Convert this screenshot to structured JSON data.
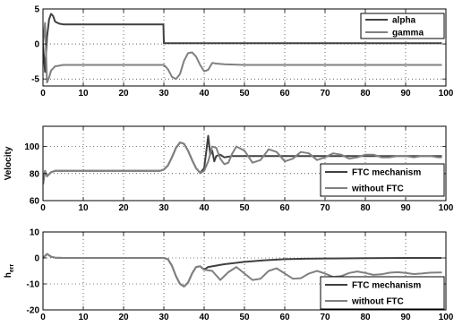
{
  "chart_data": [
    {
      "type": "line",
      "xlabel": "",
      "ylabel": "",
      "xlim": [
        0,
        100
      ],
      "ylim": [
        -6,
        5
      ],
      "xticks": [
        0,
        10,
        20,
        30,
        40,
        50,
        60,
        70,
        80,
        90,
        100
      ],
      "yticks": [
        -5,
        0,
        5
      ],
      "grid": true,
      "legend": "top-right",
      "series": [
        {
          "name": "alpha",
          "color": "#404040",
          "x": [
            0,
            0.5,
            1,
            1.5,
            2,
            2.5,
            3,
            4,
            5,
            7,
            10,
            20,
            29.9,
            30,
            35,
            40,
            50,
            60,
            70,
            80,
            90,
            99
          ],
          "y": [
            0,
            -4,
            1,
            3.5,
            4.3,
            4,
            3.2,
            2.9,
            2.8,
            2.8,
            2.8,
            2.8,
            2.8,
            0.1,
            0.1,
            0.1,
            0.1,
            0.1,
            0.1,
            0.1,
            0.1,
            0.1
          ]
        },
        {
          "name": "gamma",
          "color": "#808080",
          "x": [
            0,
            0.5,
            1,
            1.5,
            2,
            3,
            5,
            10,
            20,
            30,
            31,
            32,
            33,
            34,
            35,
            36,
            37,
            38,
            39,
            40,
            41,
            42,
            43,
            45,
            50,
            60,
            70,
            80,
            90,
            99
          ],
          "y": [
            0,
            3,
            -5.5,
            -4.8,
            -3.8,
            -3.2,
            -3.0,
            -3.0,
            -3.0,
            -3.0,
            -3.6,
            -4.7,
            -5.0,
            -4.3,
            -2.4,
            -1.3,
            -1.2,
            -1.8,
            -3.0,
            -3.9,
            -3.7,
            -2.7,
            -2.8,
            -2.9,
            -3.0,
            -3.0,
            -3.0,
            -3.0,
            -3.0,
            -3.0
          ]
        }
      ]
    },
    {
      "type": "line",
      "xlabel": "",
      "ylabel": "Velocity",
      "xlim": [
        0,
        100
      ],
      "ylim": [
        60,
        115
      ],
      "xticks": [
        0,
        10,
        20,
        30,
        40,
        50,
        60,
        70,
        80,
        90,
        100
      ],
      "yticks": [
        60,
        80,
        100
      ],
      "grid": true,
      "legend": "bottom-right",
      "series": [
        {
          "name": "FTC mechanism",
          "color": "#404040",
          "x": [
            0,
            0.5,
            1,
            2,
            3,
            5,
            10,
            20,
            29,
            30,
            31,
            32,
            33,
            34,
            35,
            36,
            37,
            38,
            39,
            40,
            40.5,
            41,
            41.5,
            42,
            42.5,
            43,
            44,
            45,
            47,
            50,
            60,
            70,
            80,
            90,
            99
          ],
          "y": [
            72,
            82,
            78,
            81,
            82,
            82,
            82,
            82,
            82,
            83,
            86,
            92,
            99,
            103,
            102,
            97,
            90,
            84,
            80.5,
            84,
            96,
            108,
            94,
            97,
            89,
            93,
            94,
            92,
            93,
            93,
            93,
            93,
            93,
            93,
            93
          ]
        },
        {
          "name": "without FTC",
          "color": "#808080",
          "x": [
            0,
            0.5,
            1,
            2,
            3,
            5,
            10,
            20,
            29,
            30,
            31,
            32,
            33,
            34,
            35,
            36,
            37,
            38,
            39,
            40,
            41,
            42,
            43,
            44,
            45,
            46,
            47,
            48,
            50,
            52,
            54,
            56,
            58,
            60,
            62,
            64,
            66,
            68,
            70,
            72,
            74,
            76,
            78,
            80,
            82,
            84,
            86,
            88,
            90,
            92,
            94,
            96,
            98,
            99
          ],
          "y": [
            72,
            82,
            78,
            81,
            82,
            82,
            82,
            82,
            82,
            83,
            86,
            92,
            99,
            103,
            102,
            97,
            90,
            84,
            80.5,
            82,
            89,
            100,
            99,
            91,
            87,
            88,
            95,
            100,
            97,
            88,
            90,
            98,
            96,
            89,
            91,
            96,
            95,
            90,
            92,
            95,
            94,
            91,
            92,
            94,
            94,
            92,
            92,
            93,
            93,
            92,
            93,
            93,
            92,
            92
          ]
        }
      ]
    },
    {
      "type": "line",
      "xlabel": "",
      "ylabel": "h_err",
      "xlim": [
        0,
        100
      ],
      "ylim": [
        -20,
        10
      ],
      "xticks": [
        0,
        10,
        20,
        30,
        40,
        50,
        60,
        70,
        80,
        90,
        100
      ],
      "yticks": [
        -20,
        -10,
        0,
        10
      ],
      "grid": true,
      "legend": "bottom-right",
      "series": [
        {
          "name": "FTC mechanism",
          "color": "#404040",
          "x": [
            0,
            1,
            2,
            3,
            5,
            10,
            20,
            30,
            31,
            32,
            33,
            34,
            35,
            36,
            37,
            38,
            39,
            40,
            41,
            45,
            50,
            55,
            60,
            65,
            70,
            80,
            90,
            99
          ],
          "y": [
            0,
            1.5,
            0.5,
            0.1,
            0,
            0,
            0,
            0,
            -0.5,
            -3,
            -7,
            -10,
            -11,
            -9.5,
            -6,
            -3.5,
            -3.2,
            -4.5,
            -3.5,
            -2.4,
            -1.5,
            -0.9,
            -0.5,
            -0.3,
            -0.2,
            -0.1,
            0,
            0
          ]
        },
        {
          "name": "without FTC",
          "color": "#808080",
          "x": [
            0,
            1,
            2,
            3,
            5,
            10,
            20,
            30,
            31,
            32,
            33,
            34,
            35,
            36,
            37,
            38,
            39,
            40,
            42,
            44,
            46,
            48,
            50,
            52,
            54,
            56,
            58,
            60,
            62,
            64,
            66,
            68,
            70,
            72,
            74,
            76,
            78,
            80,
            82,
            84,
            86,
            88,
            90,
            92,
            94,
            96,
            98,
            99
          ],
          "y": [
            0,
            1.5,
            0.5,
            0.1,
            0,
            0,
            0,
            0,
            -0.5,
            -3,
            -7,
            -10,
            -11,
            -9.5,
            -6,
            -3.5,
            -3.2,
            -4.5,
            -5,
            -8.5,
            -5.5,
            -3.5,
            -6,
            -8.5,
            -8,
            -5,
            -4,
            -6,
            -8,
            -7.8,
            -6,
            -5,
            -6,
            -7.3,
            -7,
            -5.8,
            -5.2,
            -5.8,
            -6.5,
            -6.3,
            -5.7,
            -5.5,
            -5.8,
            -6.2,
            -6,
            -5.7,
            -5.6,
            -5.6
          ]
        }
      ]
    }
  ]
}
